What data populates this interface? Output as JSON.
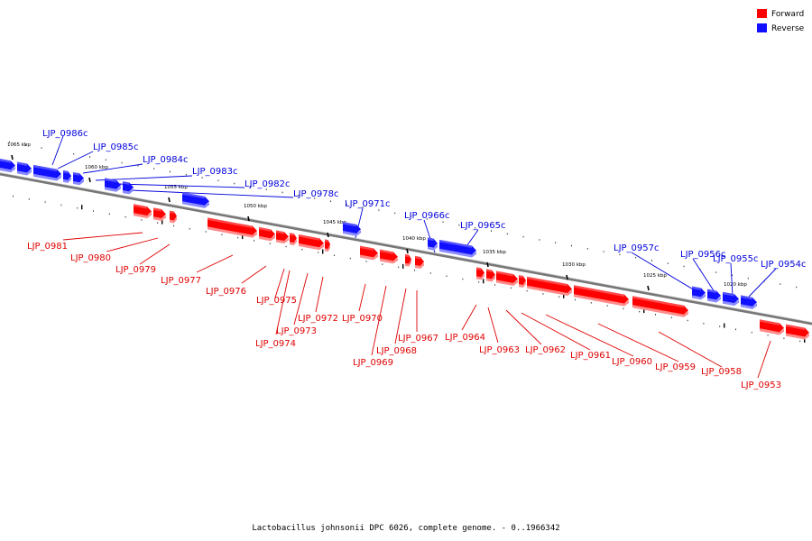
{
  "legend": {
    "items": [
      {
        "label": "Forward",
        "color": "#ff0000"
      },
      {
        "label": "Reverse",
        "color": "#1010ff"
      }
    ]
  },
  "caption": "Lactobacillus johnsonii DPC 6026, complete genome. - 0..1966342",
  "colors": {
    "forward": "#ff0000",
    "forward_shadow": "#ff8a8a",
    "reverse": "#1010ff",
    "reverse_shadow": "#8a8aff",
    "backbone": "#777777"
  },
  "scale_labels": [
    "1065 kbp",
    "1060 kbp",
    "1055 kbp",
    "1050 kbp",
    "1045 kbp",
    "1040 kbp",
    "1035 kbp",
    "1030 kbp",
    "1025 kbp",
    "1020 kbp"
  ],
  "genes": [
    {
      "label": "LJP_0986c",
      "strand": "reverse"
    },
    {
      "label": "LJP_0985c",
      "strand": "reverse"
    },
    {
      "label": "LJP_0984c",
      "strand": "reverse"
    },
    {
      "label": "LJP_0983c",
      "strand": "reverse"
    },
    {
      "label": "LJP_0982c",
      "strand": "reverse"
    },
    {
      "label": "LJP_0978c",
      "strand": "reverse"
    },
    {
      "label": "LJP_0971c",
      "strand": "reverse"
    },
    {
      "label": "LJP_0966c",
      "strand": "reverse"
    },
    {
      "label": "LJP_0965c",
      "strand": "reverse"
    },
    {
      "label": "LJP_0957c",
      "strand": "reverse"
    },
    {
      "label": "LJP_0956c",
      "strand": "reverse"
    },
    {
      "label": "LJP_0955c",
      "strand": "reverse"
    },
    {
      "label": "LJP_0954c",
      "strand": "reverse"
    },
    {
      "label": "LJP_0981",
      "strand": "forward"
    },
    {
      "label": "LJP_0980",
      "strand": "forward"
    },
    {
      "label": "LJP_0979",
      "strand": "forward"
    },
    {
      "label": "LJP_0977",
      "strand": "forward"
    },
    {
      "label": "LJP_0976",
      "strand": "forward"
    },
    {
      "label": "LJP_0975",
      "strand": "forward"
    },
    {
      "label": "LJP_0974",
      "strand": "forward"
    },
    {
      "label": "LJP_0973",
      "strand": "forward"
    },
    {
      "label": "LJP_0972",
      "strand": "forward"
    },
    {
      "label": "LJP_0970",
      "strand": "forward"
    },
    {
      "label": "LJP_0969",
      "strand": "forward"
    },
    {
      "label": "LJP_0968",
      "strand": "forward"
    },
    {
      "label": "LJP_0967",
      "strand": "forward"
    },
    {
      "label": "LJP_0964",
      "strand": "forward"
    },
    {
      "label": "LJP_0963",
      "strand": "forward"
    },
    {
      "label": "LJP_0962",
      "strand": "forward"
    },
    {
      "label": "LJP_0961",
      "strand": "forward"
    },
    {
      "label": "LJP_0960",
      "strand": "forward"
    },
    {
      "label": "LJP_0959",
      "strand": "forward"
    },
    {
      "label": "LJP_0958",
      "strand": "forward"
    },
    {
      "label": "LJP_0953",
      "strand": "forward"
    }
  ]
}
